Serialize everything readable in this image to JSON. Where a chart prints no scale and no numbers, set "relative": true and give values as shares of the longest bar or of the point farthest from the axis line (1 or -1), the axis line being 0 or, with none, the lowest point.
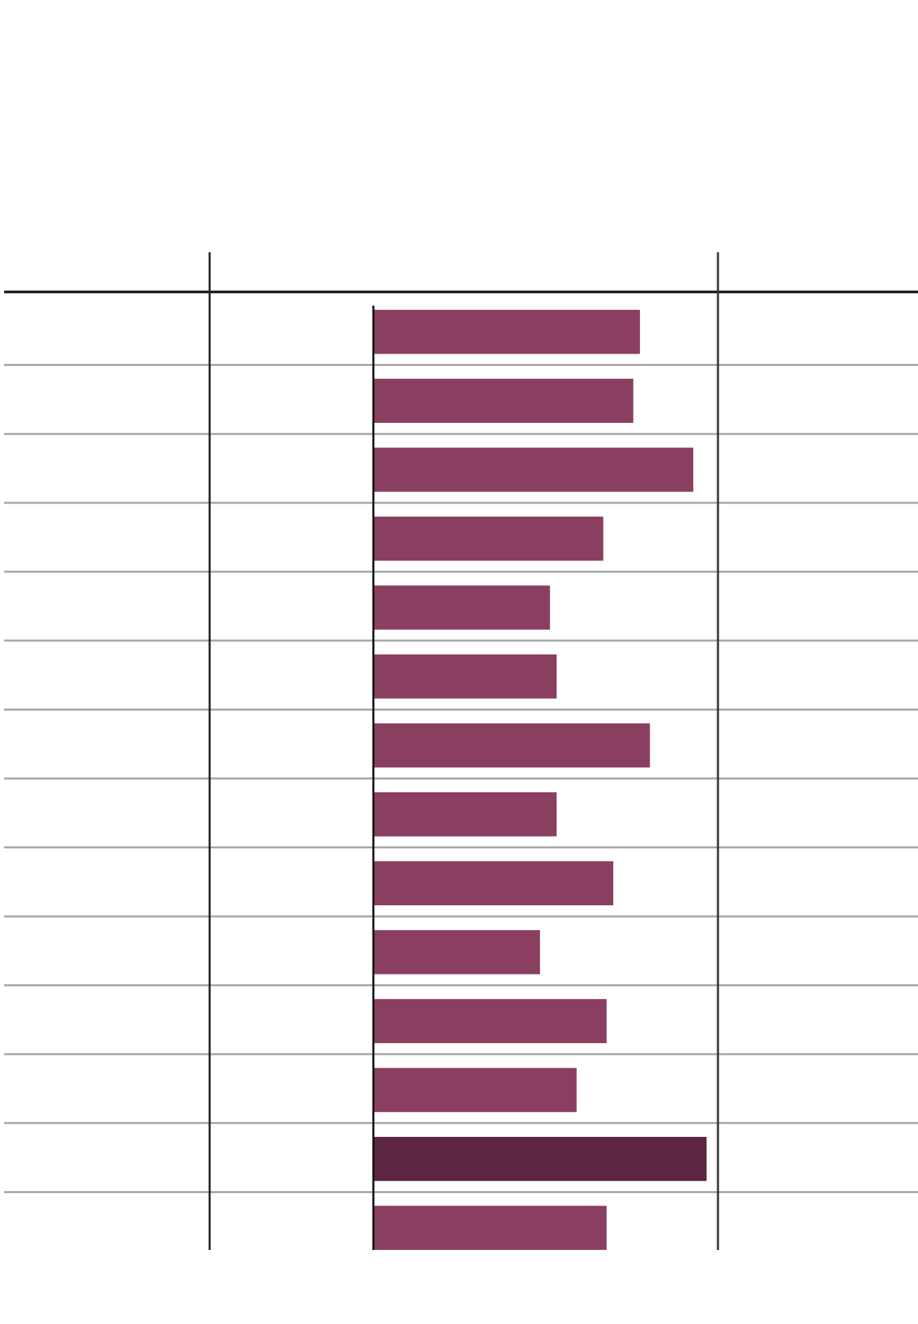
{
  "chart_data": {
    "type": "bar",
    "orientation": "horizontal",
    "relative": true,
    "categories": [
      null,
      null,
      null,
      null,
      null,
      null,
      null,
      null,
      null,
      null,
      null,
      null,
      null,
      null
    ],
    "values": [
      0.8,
      0.78,
      0.96,
      0.69,
      0.53,
      0.55,
      0.83,
      0.55,
      0.72,
      0.5,
      0.7,
      0.61,
      1,
      0.7
    ],
    "colors": [
      "#8b3f60",
      "#8b3f60",
      "#8b3f60",
      "#8b3f60",
      "#8b3f60",
      "#8b3f60",
      "#8b3f60",
      "#8b3f60",
      "#8b3f60",
      "#8b3f60",
      "#8b3f60",
      "#8b3f60",
      "#5c2542",
      "#8b3f60"
    ]
  }
}
